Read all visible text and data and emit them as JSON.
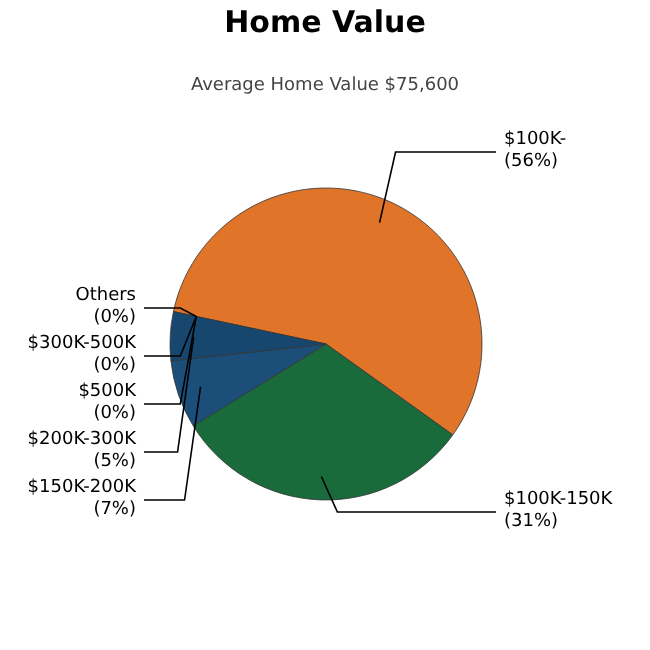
{
  "chart_data": {
    "type": "pie",
    "title": "Home Value",
    "subtitle": "Average Home Value  $75,600",
    "categories": [
      "$100K-",
      "$100K-150K",
      "$150K-200K",
      "$200K-300K",
      "$500K",
      "$300K-500K",
      "Others"
    ],
    "values": [
      56,
      31,
      7,
      5,
      0,
      0,
      0
    ],
    "value_labels": [
      "(56%)",
      "(31%)",
      "(7%)",
      "(5%)",
      "(0%)",
      "(0%)",
      "(0%)"
    ],
    "colors": [
      "#e07428",
      "#1a6b3c",
      "#1b4f7a",
      "#17466e",
      null,
      null,
      null
    ]
  }
}
